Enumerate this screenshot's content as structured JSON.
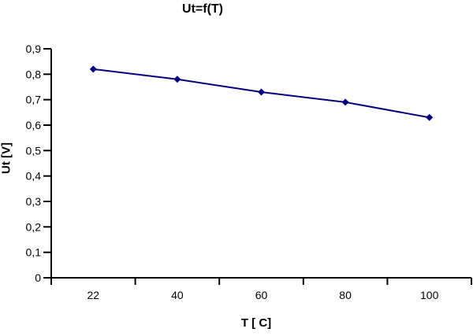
{
  "chart_data": {
    "type": "line",
    "title": "Ut=f(T)",
    "xlabel": "T [ C]",
    "ylabel": "Ut [V]",
    "categories": [
      "22",
      "40",
      "60",
      "80",
      "100"
    ],
    "series": [
      {
        "values": [
          0.82,
          0.78,
          0.73,
          0.69,
          0.63
        ]
      }
    ],
    "ylim": [
      0,
      0.9
    ],
    "ytick_step": 0.1,
    "ytick_labels": [
      "0",
      "0,1",
      "0,2",
      "0,3",
      "0,4",
      "0,5",
      "0,6",
      "0,7",
      "0,8",
      "0,9"
    ],
    "grid": false,
    "legend": "none",
    "marker": "diamond",
    "colors": {
      "line": "#000080",
      "marker": "#000080",
      "axis": "#000000",
      "text": "#000000",
      "background": "#ffffff"
    }
  }
}
